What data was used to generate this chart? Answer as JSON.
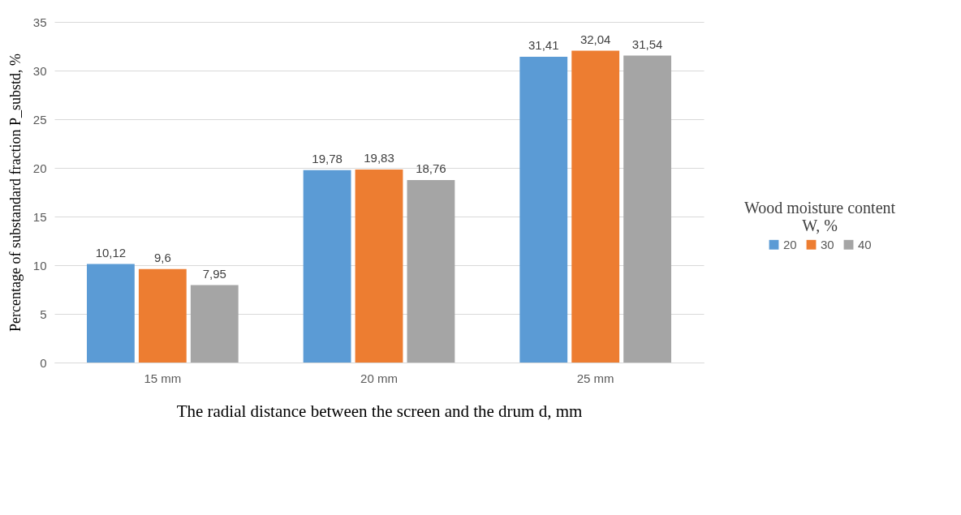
{
  "chart_data": {
    "type": "bar",
    "categories": [
      "15 mm",
      "20 mm",
      "25 mm"
    ],
    "series": [
      {
        "name": "20",
        "color": "#5b9bd5",
        "values": [
          10.12,
          19.78,
          31.41
        ],
        "value_labels": [
          "10,12",
          "19,78",
          "31,41"
        ]
      },
      {
        "name": "30",
        "color": "#ed7d31",
        "values": [
          9.6,
          19.83,
          32.04
        ],
        "value_labels": [
          "9,6",
          "19,83",
          "32,04"
        ]
      },
      {
        "name": "40",
        "color": "#a5a5a5",
        "values": [
          7.95,
          18.76,
          31.54
        ],
        "value_labels": [
          "7,95",
          "18,76",
          "31,54"
        ]
      }
    ],
    "xlabel": "The radial distance between the screen and the drum d, mm",
    "ylabel": "Percentage of substandard fraction P_substd, %",
    "legend_title": "Wood moisture content W, %",
    "ylim": [
      0,
      35
    ],
    "yticks": [
      0,
      5,
      10,
      15,
      20,
      25,
      30,
      35
    ],
    "grid": "y",
    "legend": "right"
  }
}
